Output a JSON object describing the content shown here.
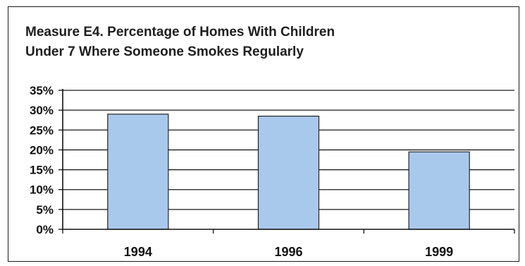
{
  "chart_data": {
    "type": "bar",
    "title": "Measure E4. Percentage of Homes With Children Under 7 Where Someone Smokes Regularly",
    "title_lines": [
      "Measure E4. Percentage of Homes With Children",
      "Under 7 Where Someone Smokes Regularly"
    ],
    "categories": [
      "1994",
      "1996",
      "1999"
    ],
    "values": [
      29,
      28.5,
      19.5
    ],
    "ylim": [
      0,
      35
    ],
    "yticks": [
      0,
      5,
      10,
      15,
      20,
      25,
      30,
      35
    ],
    "ytick_labels": [
      "0%",
      "5%",
      "10%",
      "15%",
      "20%",
      "25%",
      "30%",
      "35%"
    ],
    "xlabel": "",
    "ylabel": "",
    "grid": true,
    "legend": "none",
    "colors": {
      "bar": "#a9c9ec",
      "bar_stroke": "#222222",
      "grid": "#1a1a1a"
    }
  }
}
